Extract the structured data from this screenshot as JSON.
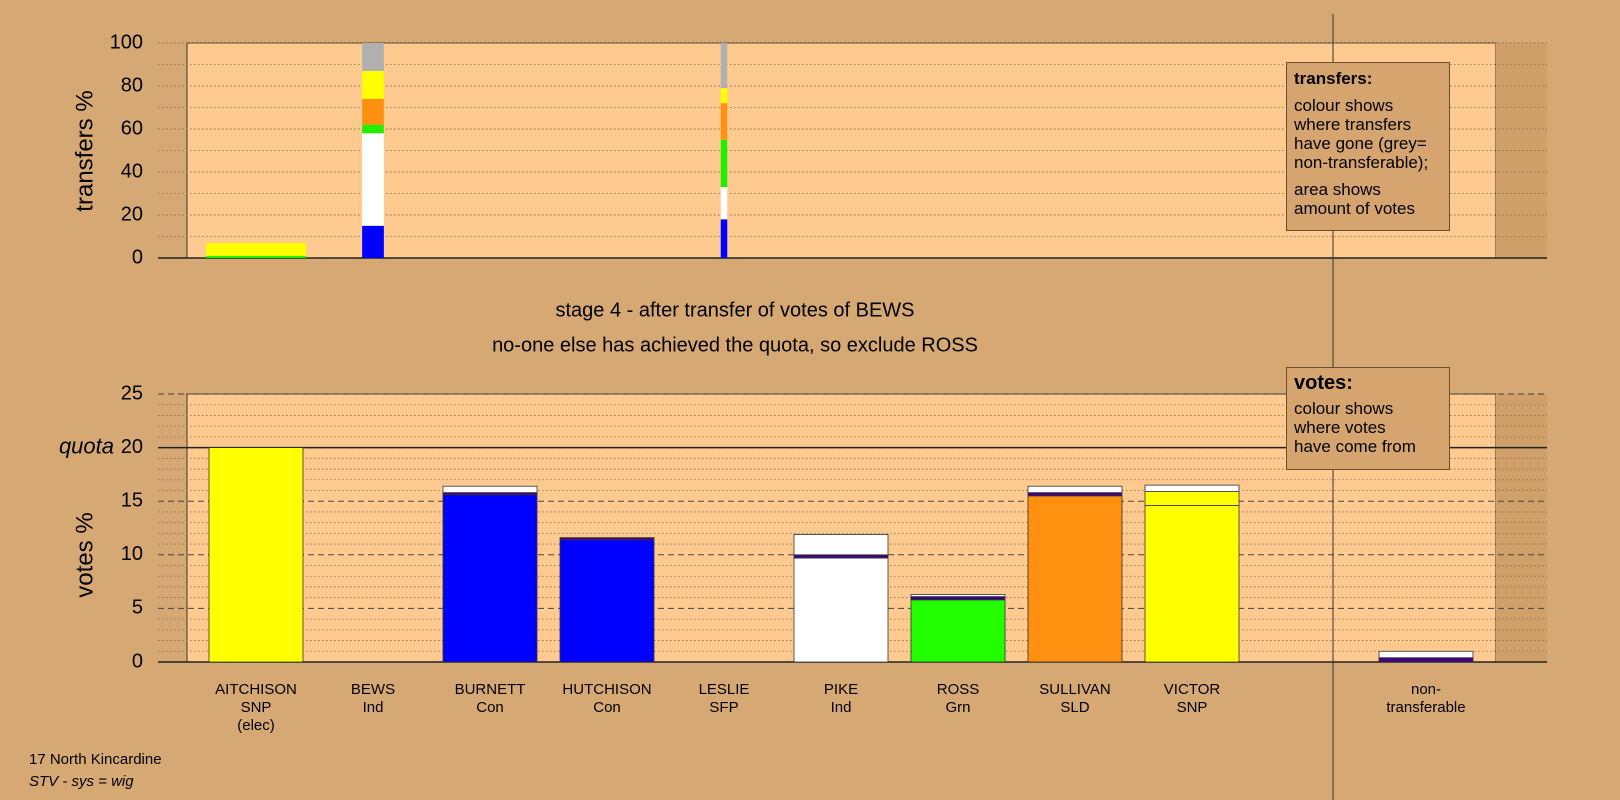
{
  "chart_data": [
    {
      "type": "bar",
      "stacked": true,
      "ylabel": "transfers %",
      "ylim": [
        0,
        100
      ],
      "yticks": [
        0,
        20,
        40,
        60,
        80,
        100
      ],
      "minor_yticks": [
        10,
        30,
        50,
        70,
        90
      ],
      "grid": true,
      "widths": [
        4.6,
        1.0,
        null,
        null,
        0.3,
        null,
        null,
        null,
        null,
        null,
        null
      ],
      "series": [
        {
          "color": "#0000ff",
          "values": [
            null,
            15,
            null,
            null,
            18,
            null,
            null,
            null,
            null,
            null,
            null
          ]
        },
        {
          "color": "#ffffff",
          "values": [
            null,
            43,
            null,
            null,
            15,
            null,
            null,
            null,
            null,
            null,
            null
          ]
        },
        {
          "color": "#22ee00",
          "values": [
            1,
            4,
            null,
            null,
            22,
            null,
            null,
            null,
            null,
            null,
            null
          ]
        },
        {
          "color": "#ff9010",
          "values": [
            null,
            12,
            null,
            null,
            17,
            null,
            null,
            null,
            null,
            null,
            null
          ]
        },
        {
          "color": "#ffff00",
          "values": [
            6,
            13,
            null,
            null,
            7,
            null,
            null,
            null,
            null,
            null,
            null
          ]
        },
        {
          "color": "#b0b0b0",
          "values": [
            null,
            13,
            null,
            null,
            21,
            null,
            null,
            null,
            null,
            null,
            null
          ]
        }
      ]
    },
    {
      "type": "bar",
      "stacked": true,
      "title": "stage 4 - after transfer of votes of BEWS",
      "subtitle": "no-one else has achieved the quota, so exclude ROSS",
      "ylabel": "votes %",
      "ylim": [
        0,
        25
      ],
      "yticks": [
        0,
        5,
        10,
        15,
        20,
        25
      ],
      "minor_yticks": [
        1,
        2,
        3,
        4,
        6,
        7,
        8,
        9,
        11,
        12,
        13,
        14,
        16,
        17,
        18,
        19,
        21,
        22,
        23,
        24
      ],
      "grid": true,
      "quota": {
        "value": 20,
        "label": "quota"
      },
      "categories": [
        [
          "AITCHISON",
          "SNP",
          "(elec)"
        ],
        [
          "BEWS",
          "Ind"
        ],
        [
          "BURNETT",
          "Con"
        ],
        [
          "HUTCHISON",
          "Con"
        ],
        [
          "LESLIE",
          "SFP"
        ],
        [
          "PIKE",
          "Ind"
        ],
        [
          "ROSS",
          "Grn"
        ],
        [
          "SULLIVAN",
          "SLD"
        ],
        [
          "VICTOR",
          "SNP"
        ],
        null,
        [
          "non-",
          "transferable"
        ]
      ],
      "series": [
        {
          "colors": [
            "#ffff00",
            null,
            "#0000ff",
            "#0000ff",
            null,
            "#ffffff",
            "#22ff00",
            "#ff9010",
            "#ffff00",
            null,
            null
          ],
          "values": [
            20,
            null,
            15.6,
            11.4,
            null,
            9.7,
            5.8,
            15.5,
            14.6,
            null,
            null
          ]
        },
        {
          "color": "#ffff00",
          "values": [
            null,
            null,
            null,
            null,
            null,
            null,
            null,
            null,
            1.3,
            null,
            null
          ]
        },
        {
          "color": "#400080",
          "values": [
            null,
            null,
            0.2,
            0.2,
            null,
            0.3,
            0.3,
            0.3,
            null,
            null,
            0.4
          ]
        },
        {
          "color": "#ffffff",
          "values": [
            null,
            null,
            0.6,
            null,
            null,
            1.9,
            0.2,
            0.6,
            0.6,
            null,
            0.6
          ]
        }
      ]
    }
  ],
  "transfers_box": {
    "title": "transfers:",
    "paragraphs": [
      [
        "colour shows",
        "where transfers",
        "have gone (grey=",
        "non-transferable);"
      ],
      [
        "area shows",
        "amount of votes"
      ]
    ]
  },
  "votes_box": {
    "title": "votes:",
    "paragraphs": [
      [
        "colour shows",
        "where votes",
        "have come from"
      ]
    ]
  },
  "footer": {
    "place": "17 North Kincardine",
    "system": "STV - sys = wig"
  }
}
